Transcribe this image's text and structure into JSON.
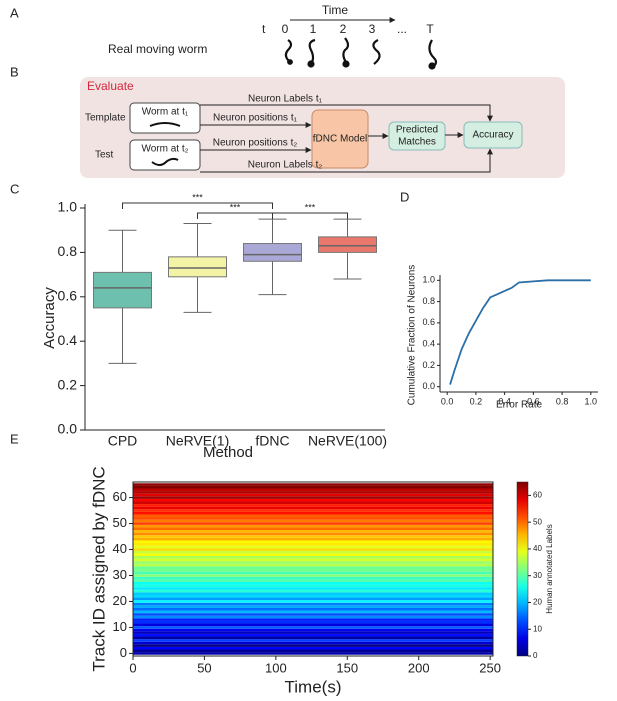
{
  "panels": [
    "A",
    "B",
    "C",
    "D",
    "E"
  ],
  "panel_a": {
    "axis_label": "Time",
    "t_label": "t",
    "frames": [
      "0",
      "1",
      "2",
      "3",
      "...",
      "T"
    ],
    "row_label": "Real moving worm"
  },
  "panel_b": {
    "title": "Evaluate",
    "template": "Template",
    "test": "Test",
    "worm_t1": "Worm at t₁",
    "worm_t2": "Worm at t₂",
    "labels_t1": "Neuron Labels t₁",
    "positions_t1": "Neuron positions t₁",
    "positions_t2": "Neuron positions t₂",
    "labels_t2": "Neuron Labels t₂",
    "model": "fDNC Model",
    "predicted": [
      "Predicted",
      "Matches"
    ],
    "accuracy": "Accuracy"
  },
  "chart_data": [
    {
      "type": "box",
      "xlabel": "Method",
      "ylabel": "Accuracy",
      "categories": [
        "CPD",
        "NeRVE(1)",
        "fDNC",
        "NeRVE(100)"
      ],
      "colors": [
        "#6dbfae",
        "#f3f3a6",
        "#aaa8d6",
        "#e9776b"
      ],
      "boxes": [
        {
          "whislo": 0.3,
          "q1": 0.55,
          "med": 0.64,
          "q3": 0.71,
          "whishi": 0.9
        },
        {
          "whislo": 0.53,
          "q1": 0.69,
          "med": 0.73,
          "q3": 0.78,
          "whishi": 0.93
        },
        {
          "whislo": 0.61,
          "q1": 0.76,
          "med": 0.79,
          "q3": 0.84,
          "whishi": 0.95
        },
        {
          "whislo": 0.68,
          "q1": 0.8,
          "med": 0.83,
          "q3": 0.87,
          "whishi": 0.95
        }
      ],
      "annotations": [
        {
          "text": "***",
          "pair": [
            0,
            2
          ]
        },
        {
          "text": "***",
          "pair": [
            1,
            2
          ]
        },
        {
          "text": "***",
          "pair": [
            2,
            3
          ]
        }
      ],
      "ylim": [
        0,
        1.0
      ],
      "yticks": [
        {
          "value": 0,
          "label": "0.0"
        },
        {
          "value": 0.2,
          "label": "0.2"
        },
        {
          "value": 0.4,
          "label": "0.4"
        },
        {
          "value": 0.6,
          "label": "0.6"
        },
        {
          "value": 0.8,
          "label": "0.8"
        },
        {
          "value": 1.0,
          "label": "1.0"
        }
      ]
    },
    {
      "type": "line",
      "xlabel": "Error Rate",
      "ylabel": "Cumulative Fraction of Neurons",
      "color": "#2a6fa8",
      "x": [
        0.02,
        0.05,
        0.1,
        0.15,
        0.2,
        0.25,
        0.3,
        0.35,
        0.4,
        0.45,
        0.5,
        0.6,
        0.7,
        1.0
      ],
      "values": [
        0.02,
        0.15,
        0.35,
        0.5,
        0.62,
        0.74,
        0.84,
        0.87,
        0.9,
        0.93,
        0.98,
        0.99,
        1.0,
        1.0
      ],
      "xlim": [
        -0.05,
        1.05
      ],
      "ylim": [
        -0.05,
        1.05
      ],
      "xticks": [
        {
          "value": 0,
          "label": "0.0"
        },
        {
          "value": 0.2,
          "label": "0.2"
        },
        {
          "value": 0.4,
          "label": "0.4"
        },
        {
          "value": 0.6,
          "label": "0.6"
        },
        {
          "value": 0.8,
          "label": "0.8"
        },
        {
          "value": 1.0,
          "label": "1.0"
        }
      ],
      "yticks": [
        {
          "value": 0,
          "label": "0.0"
        },
        {
          "value": 0.2,
          "label": "0.2"
        },
        {
          "value": 0.4,
          "label": "0.4"
        },
        {
          "value": 0.6,
          "label": "0.6"
        },
        {
          "value": 0.8,
          "label": "0.8"
        },
        {
          "value": 1.0,
          "label": "1.0"
        }
      ]
    },
    {
      "type": "heatmap",
      "xlabel": "Time(s)",
      "ylabel": "Track ID assigned by fDNC",
      "colorbar_label": "Human annotated Labels",
      "values": [
        3,
        1,
        8,
        0,
        5,
        12,
        2,
        9,
        4,
        7,
        14,
        6,
        11,
        10,
        17,
        13,
        20,
        15,
        19,
        16,
        24,
        18,
        22,
        21,
        27,
        23,
        26,
        25,
        30,
        28,
        33,
        29,
        32,
        31,
        36,
        34,
        38,
        35,
        40,
        37,
        43,
        39,
        42,
        41,
        46,
        44,
        48,
        45,
        50,
        47,
        53,
        49,
        52,
        51,
        56,
        54,
        58,
        55,
        60,
        57,
        63,
        59,
        62,
        61,
        65,
        64
      ],
      "xlim": [
        0,
        252
      ],
      "ylim": [
        -1,
        66
      ],
      "clim": [
        0,
        65
      ],
      "colormap": "jet",
      "xticks": [
        0,
        50,
        100,
        150,
        200,
        250
      ],
      "yticks": [
        0,
        10,
        20,
        30,
        40,
        50,
        60
      ],
      "cticks": [
        0,
        10,
        20,
        30,
        40,
        50,
        60
      ]
    }
  ]
}
